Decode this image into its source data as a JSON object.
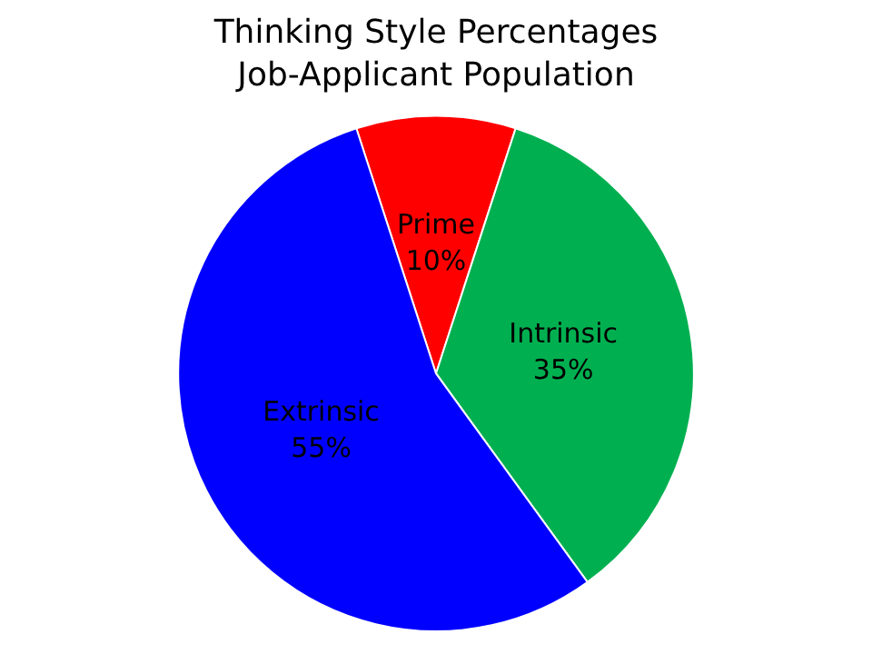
{
  "chart_data": {
    "type": "pie",
    "title": "Thinking Style Percentages",
    "subtitle": "Job-Applicant Population",
    "categories": [
      "Prime",
      "Intrinsic",
      "Extrinsic"
    ],
    "values": [
      10,
      35,
      55
    ],
    "colors": [
      "#ff0000",
      "#00b050",
      "#0000ff"
    ],
    "value_labels": [
      "10%",
      "35%",
      "55%"
    ],
    "legend": false
  }
}
